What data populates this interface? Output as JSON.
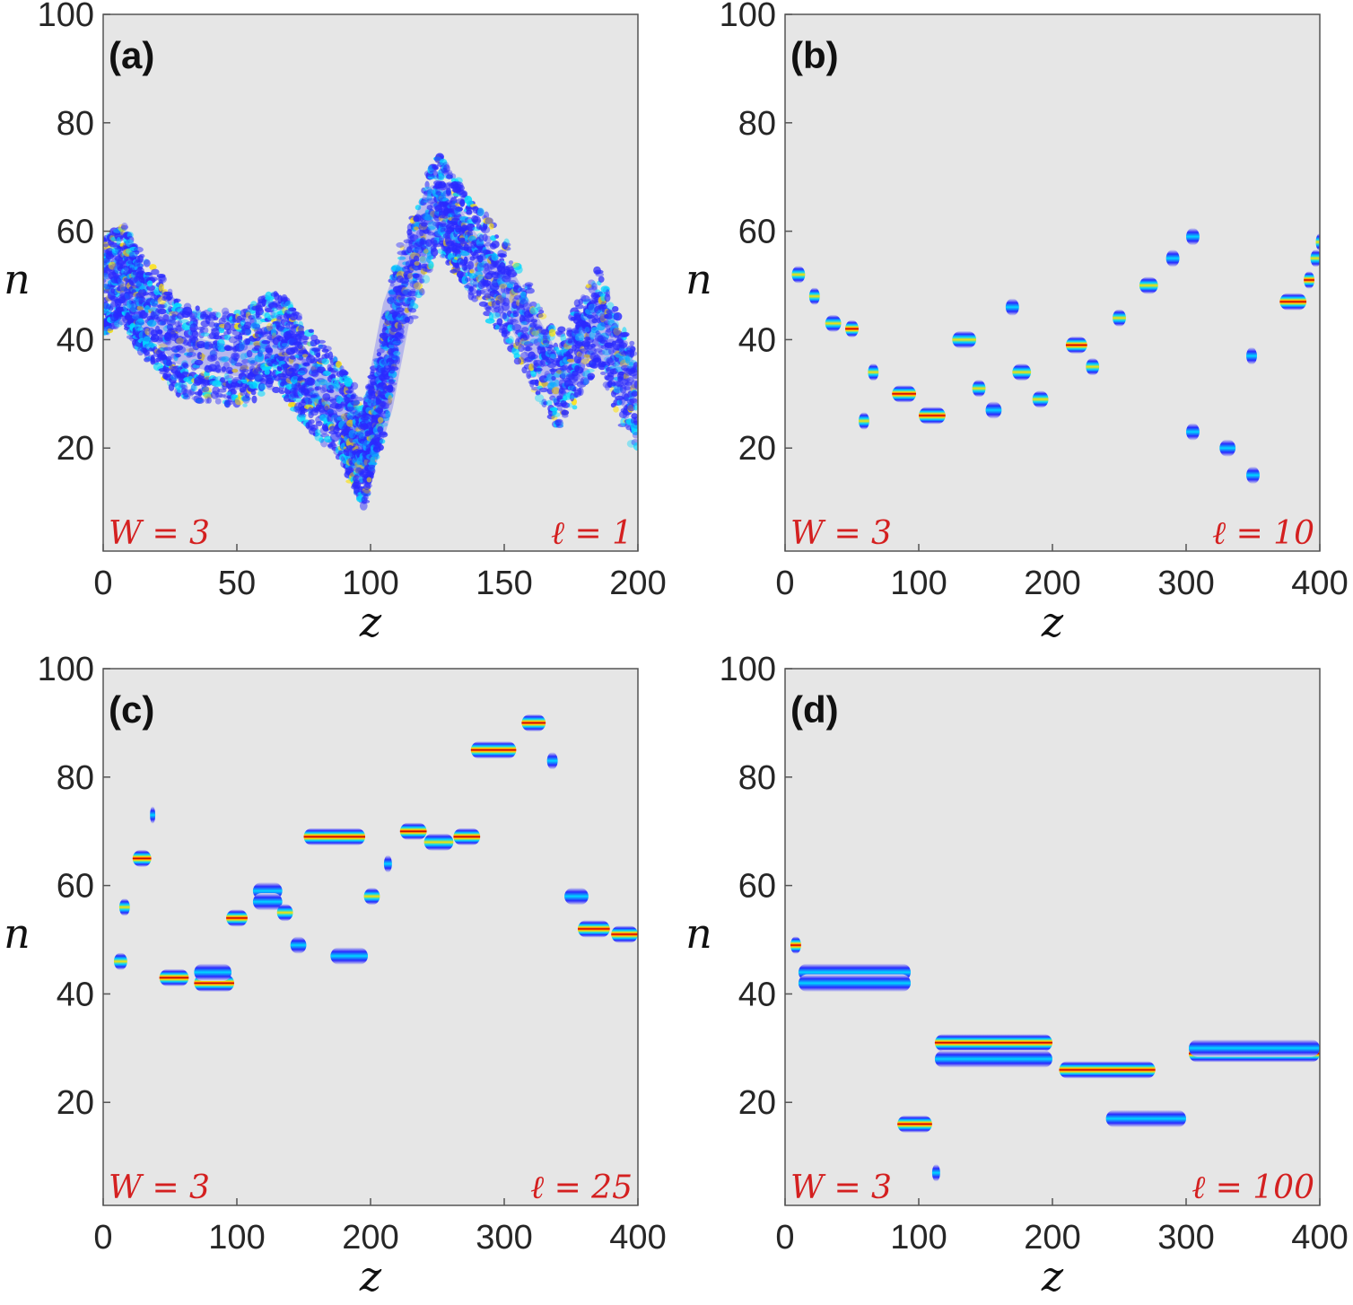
{
  "colors": {
    "background": "#e6e6e6",
    "annotation": "#d42020",
    "colormap": [
      "#e6e6e6",
      "#2a2aff",
      "#00d8ff",
      "#ffe000",
      "#ff2a00",
      "#8b0000"
    ]
  },
  "chart_data": [
    {
      "type": "heatmap",
      "panel_label": "(a)",
      "xlabel": "z",
      "ylabel": "n",
      "xlim": [
        0,
        200
      ],
      "ylim": [
        1,
        100
      ],
      "xticks": [
        "0",
        "50",
        "100",
        "150",
        "200"
      ],
      "yticks": [
        "20",
        "40",
        "60",
        "80",
        "100"
      ],
      "annotation_left": "W = 3",
      "annotation_right": "ℓ = 1",
      "style": "diffuse",
      "tracks": [
        {
          "z": [
            0,
            8,
            15,
            30,
            50,
            65,
            75,
            90,
            97,
            103,
            110,
            125,
            135,
            150,
            170,
            185,
            200
          ],
          "n": [
            50,
            52,
            46,
            38,
            36,
            40,
            34,
            26,
            18,
            28,
            46,
            66,
            58,
            50,
            32,
            44,
            28
          ],
          "width": 9,
          "intensity": 0.8
        }
      ]
    },
    {
      "type": "heatmap",
      "panel_label": "(b)",
      "xlabel": "z",
      "ylabel": "n",
      "xlim": [
        0,
        400
      ],
      "ylim": [
        1,
        100
      ],
      "xticks": [
        "0",
        "100",
        "200",
        "300",
        "400"
      ],
      "yticks": [
        "20",
        "40",
        "60",
        "80",
        "100"
      ],
      "annotation_left": "W = 3",
      "annotation_right": "ℓ = 10",
      "style": "blobs",
      "blobs": [
        {
          "z": 5,
          "n": 52,
          "len": 10,
          "i": 0.7
        },
        {
          "z": 18,
          "n": 48,
          "len": 8,
          "i": 0.7
        },
        {
          "z": 30,
          "n": 43,
          "len": 12,
          "i": 0.8
        },
        {
          "z": 45,
          "n": 42,
          "len": 10,
          "i": 0.85
        },
        {
          "z": 62,
          "n": 34,
          "len": 8,
          "i": 0.7
        },
        {
          "z": 55,
          "n": 25,
          "len": 8,
          "i": 0.7
        },
        {
          "z": 80,
          "n": 30,
          "len": 18,
          "i": 0.95
        },
        {
          "z": 100,
          "n": 26,
          "len": 20,
          "i": 0.85
        },
        {
          "z": 125,
          "n": 40,
          "len": 18,
          "i": 0.7
        },
        {
          "z": 140,
          "n": 31,
          "len": 10,
          "i": 0.7
        },
        {
          "z": 150,
          "n": 27,
          "len": 12,
          "i": 0.6
        },
        {
          "z": 165,
          "n": 46,
          "len": 10,
          "i": 0.6
        },
        {
          "z": 170,
          "n": 34,
          "len": 14,
          "i": 0.7
        },
        {
          "z": 185,
          "n": 29,
          "len": 12,
          "i": 0.7
        },
        {
          "z": 210,
          "n": 39,
          "len": 16,
          "i": 0.9
        },
        {
          "z": 225,
          "n": 35,
          "len": 10,
          "i": 0.8
        },
        {
          "z": 245,
          "n": 44,
          "len": 10,
          "i": 0.7
        },
        {
          "z": 265,
          "n": 50,
          "len": 14,
          "i": 0.7
        },
        {
          "z": 285,
          "n": 55,
          "len": 10,
          "i": 0.6
        },
        {
          "z": 300,
          "n": 59,
          "len": 10,
          "i": 0.6
        },
        {
          "z": 300,
          "n": 23,
          "len": 10,
          "i": 0.6
        },
        {
          "z": 325,
          "n": 20,
          "len": 12,
          "i": 0.6
        },
        {
          "z": 345,
          "n": 37,
          "len": 8,
          "i": 0.6
        },
        {
          "z": 345,
          "n": 15,
          "len": 10,
          "i": 0.6
        },
        {
          "z": 370,
          "n": 47,
          "len": 20,
          "i": 0.95
        },
        {
          "z": 388,
          "n": 51,
          "len": 8,
          "i": 0.9
        },
        {
          "z": 393,
          "n": 55,
          "len": 8,
          "i": 0.8
        },
        {
          "z": 397,
          "n": 58,
          "len": 6,
          "i": 0.8
        }
      ]
    },
    {
      "type": "heatmap",
      "panel_label": "(c)",
      "xlabel": "z",
      "ylabel": "n",
      "xlim": [
        0,
        400
      ],
      "ylim": [
        1,
        100
      ],
      "xticks": [
        "0",
        "100",
        "200",
        "300",
        "400"
      ],
      "yticks": [
        "20",
        "40",
        "60",
        "80",
        "100"
      ],
      "annotation_left": "W = 3",
      "annotation_right": "ℓ = 25",
      "style": "blobs",
      "blobs": [
        {
          "z": 12,
          "n": 56,
          "len": 8,
          "i": 0.7
        },
        {
          "z": 8,
          "n": 46,
          "len": 10,
          "i": 0.7
        },
        {
          "z": 22,
          "n": 65,
          "len": 14,
          "i": 0.85
        },
        {
          "z": 35,
          "n": 73,
          "len": 4,
          "i": 0.5
        },
        {
          "z": 42,
          "n": 43,
          "len": 22,
          "i": 1.0
        },
        {
          "z": 68,
          "n": 42,
          "len": 30,
          "i": 1.0
        },
        {
          "z": 68,
          "n": 44,
          "len": 28,
          "i": 0.6
        },
        {
          "z": 92,
          "n": 54,
          "len": 16,
          "i": 0.9
        },
        {
          "z": 112,
          "n": 59,
          "len": 22,
          "i": 0.6
        },
        {
          "z": 112,
          "n": 57,
          "len": 22,
          "i": 0.6
        },
        {
          "z": 130,
          "n": 55,
          "len": 12,
          "i": 0.8
        },
        {
          "z": 140,
          "n": 49,
          "len": 12,
          "i": 0.6
        },
        {
          "z": 150,
          "n": 69,
          "len": 46,
          "i": 1.0
        },
        {
          "z": 170,
          "n": 47,
          "len": 28,
          "i": 0.6
        },
        {
          "z": 195,
          "n": 58,
          "len": 12,
          "i": 0.8
        },
        {
          "z": 210,
          "n": 64,
          "len": 6,
          "i": 0.6
        },
        {
          "z": 222,
          "n": 70,
          "len": 20,
          "i": 0.85
        },
        {
          "z": 240,
          "n": 68,
          "len": 22,
          "i": 0.8
        },
        {
          "z": 262,
          "n": 69,
          "len": 20,
          "i": 0.95
        },
        {
          "z": 275,
          "n": 85,
          "len": 34,
          "i": 1.0
        },
        {
          "z": 313,
          "n": 90,
          "len": 18,
          "i": 0.95
        },
        {
          "z": 332,
          "n": 83,
          "len": 8,
          "i": 0.5
        },
        {
          "z": 345,
          "n": 58,
          "len": 18,
          "i": 0.6
        },
        {
          "z": 355,
          "n": 52,
          "len": 24,
          "i": 1.0
        },
        {
          "z": 380,
          "n": 51,
          "len": 20,
          "i": 0.9
        }
      ]
    },
    {
      "type": "heatmap",
      "panel_label": "(d)",
      "xlabel": "z",
      "ylabel": "n",
      "xlim": [
        0,
        400
      ],
      "ylim": [
        1,
        100
      ],
      "xticks": [
        "0",
        "100",
        "200",
        "300",
        "400"
      ],
      "yticks": [
        "20",
        "40",
        "60",
        "80",
        "100"
      ],
      "annotation_left": "W = 3",
      "annotation_right": "ℓ = 100",
      "style": "blobs",
      "blobs": [
        {
          "z": 4,
          "n": 49,
          "len": 8,
          "i": 0.95
        },
        {
          "z": 10,
          "n": 44,
          "len": 84,
          "i": 0.55
        },
        {
          "z": 10,
          "n": 42,
          "len": 84,
          "i": 0.55
        },
        {
          "z": 84,
          "n": 16,
          "len": 26,
          "i": 0.95
        },
        {
          "z": 110,
          "n": 7,
          "len": 6,
          "i": 0.6
        },
        {
          "z": 112,
          "n": 31,
          "len": 88,
          "i": 0.95
        },
        {
          "z": 112,
          "n": 28,
          "len": 88,
          "i": 0.6
        },
        {
          "z": 205,
          "n": 26,
          "len": 72,
          "i": 0.95
        },
        {
          "z": 240,
          "n": 17,
          "len": 60,
          "i": 0.6
        },
        {
          "z": 302,
          "n": 29,
          "len": 98,
          "i": 0.95
        },
        {
          "z": 302,
          "n": 30,
          "len": 98,
          "i": 0.6
        }
      ]
    }
  ]
}
